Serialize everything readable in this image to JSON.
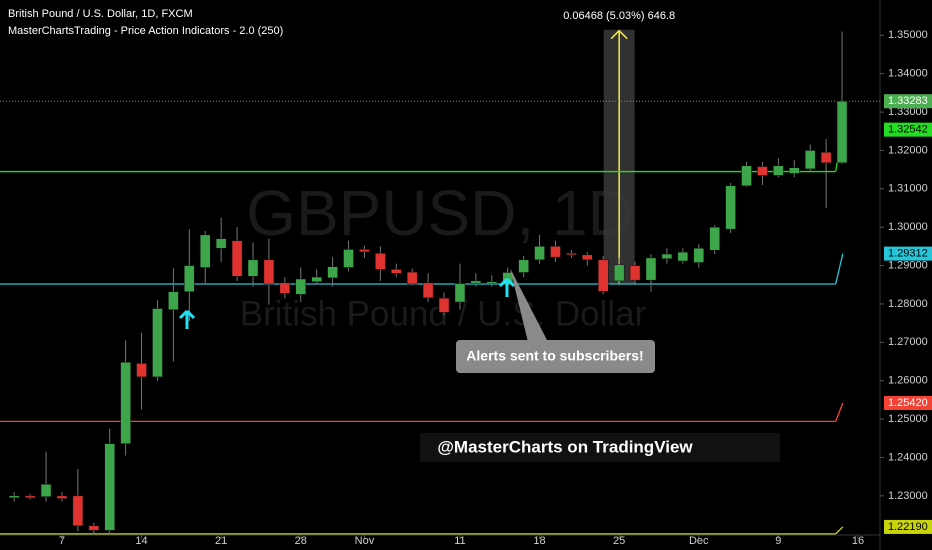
{
  "chart_data": {
    "type": "candlestick",
    "title": "British Pound / U.S. Dollar, 1D, FXCM",
    "subtitle": "MasterChartsTrading - Price Action Indicators - 2.0 (250)",
    "watermark": "GBPUSD, 1D",
    "watermark_subtitle": "British Pound / U.S. Dollar",
    "categories": [
      null,
      null,
      null,
      "7",
      null,
      null,
      null,
      null,
      "14",
      null,
      null,
      null,
      null,
      "21",
      null,
      null,
      null,
      null,
      "28",
      null,
      null,
      null,
      "Nov",
      null,
      null,
      null,
      null,
      null,
      "11",
      null,
      null,
      null,
      null,
      "18",
      null,
      null,
      null,
      null,
      "25",
      null,
      null,
      null,
      null,
      "Dec",
      null,
      null,
      null,
      null,
      "9",
      null,
      null,
      null,
      null,
      "16"
    ],
    "open": [
      1.2295,
      1.23,
      1.2298,
      1.23,
      1.23,
      1.2222,
      1.221,
      1.2436,
      1.2645,
      1.261,
      1.2785,
      1.2832,
      1.2895,
      1.2945,
      1.2965,
      1.2872,
      1.2915,
      1.2855,
      1.2825,
      1.2858,
      1.2868,
      1.2895,
      1.2942,
      1.2932,
      1.289,
      1.2883,
      1.2855,
      1.2815,
      1.2805,
      1.2853,
      1.2855,
      1.285,
      1.2882,
      1.2915,
      1.295,
      1.2932,
      1.2928,
      1.2915,
      1.286,
      1.29,
      1.2862,
      1.2918,
      1.2912,
      1.2908,
      1.294,
      1.2995,
      1.3108,
      1.3158,
      1.3135,
      1.314,
      1.3152,
      1.3195,
      1.3168,
      null
    ],
    "high": [
      1.231,
      1.2305,
      1.2415,
      1.231,
      1.237,
      1.223,
      1.2475,
      1.2705,
      1.2725,
      1.281,
      1.2893,
      1.2995,
      1.299,
      1.3025,
      1.3,
      1.296,
      1.297,
      1.287,
      1.2895,
      1.289,
      1.2922,
      1.2965,
      1.2952,
      1.295,
      1.2905,
      1.2892,
      1.288,
      1.283,
      1.2905,
      1.288,
      1.2875,
      1.2895,
      1.2925,
      1.298,
      1.2965,
      1.294,
      1.2935,
      1.2925,
      1.292,
      1.291,
      1.293,
      1.2945,
      1.2945,
      1.2955,
      1.3005,
      1.3115,
      1.317,
      1.317,
      1.318,
      1.3175,
      1.3215,
      1.323,
      1.351,
      null
    ],
    "low": [
      1.2285,
      1.229,
      1.2285,
      1.2285,
      1.2208,
      1.22,
      1.22,
      1.2405,
      1.2525,
      1.26,
      1.265,
      1.2755,
      1.285,
      1.291,
      1.286,
      1.2845,
      1.2798,
      1.2815,
      1.2805,
      1.285,
      1.2845,
      1.2885,
      1.292,
      1.286,
      1.287,
      1.2848,
      1.2805,
      1.277,
      1.2785,
      1.2845,
      1.2845,
      1.284,
      1.287,
      1.2905,
      1.291,
      1.292,
      1.29,
      1.2825,
      1.2848,
      1.2848,
      1.2832,
      1.2905,
      1.2905,
      1.2895,
      1.293,
      1.2985,
      1.3105,
      1.311,
      1.313,
      1.313,
      1.3145,
      1.305,
      1.3165,
      null
    ],
    "close": [
      1.23,
      1.2295,
      1.233,
      1.2293,
      1.2222,
      1.221,
      1.2436,
      1.2648,
      1.261,
      1.2788,
      1.2832,
      1.29,
      1.298,
      1.297,
      1.2872,
      1.2915,
      1.2852,
      1.2828,
      1.2865,
      1.287,
      1.2897,
      1.2942,
      1.2936,
      1.289,
      1.288,
      1.2852,
      1.2816,
      1.2778,
      1.2853,
      1.286,
      1.2858,
      1.2882,
      1.2915,
      1.295,
      1.2922,
      1.2929,
      1.2915,
      1.2833,
      1.2902,
      1.2862,
      1.292,
      1.293,
      1.2935,
      1.2945,
      1.3,
      1.3108,
      1.316,
      1.3135,
      1.316,
      1.3155,
      1.32,
      1.3168,
      1.33283,
      null
    ],
    "up_color": "#3ea64a",
    "down_color": "#e0332f",
    "last_price": 1.33283,
    "last_price_color": "#4caf50",
    "ylim": [
      1.2198,
      1.3592
    ],
    "yticks": [
      {
        "value": 1.23,
        "label": "1.23000"
      },
      {
        "value": 1.24,
        "label": "1.24000"
      },
      {
        "value": 1.25,
        "label": "1.25000"
      },
      {
        "value": 1.26,
        "label": "1.26000"
      },
      {
        "value": 1.27,
        "label": "1.27000"
      },
      {
        "value": 1.28,
        "label": "1.28000"
      },
      {
        "value": 1.29,
        "label": "1.29000"
      },
      {
        "value": 1.3,
        "label": "1.30000"
      },
      {
        "value": 1.31,
        "label": "1.31000"
      },
      {
        "value": 1.32,
        "label": "1.32000"
      },
      {
        "value": 1.33,
        "label": "1.33000"
      },
      {
        "value": 1.34,
        "label": "1.34000"
      },
      {
        "value": 1.35,
        "label": "1.35000"
      }
    ],
    "indicators": [
      {
        "color": "#22dd22",
        "level": 1.3145,
        "end": 1.32542
      },
      {
        "color": "#26c6da",
        "level": 1.2852,
        "end": 1.29312
      },
      {
        "color": "#f44336",
        "level": 1.2494,
        "end": {
          "value": 1.2542,
          "label": "1.25420"
        }
      },
      {
        "color": "#c8d40a",
        "level": 1.2201,
        "end": {
          "value": 1.2219,
          "label": "1.22190"
        }
      }
    ],
    "measure": {
      "from": 1.2852,
      "to": 1.3499,
      "label": "0.06468 (5.03%) 646.8"
    },
    "callout": "Alerts sent to subscribers!",
    "handle": "@MasterCharts on TradingView"
  }
}
